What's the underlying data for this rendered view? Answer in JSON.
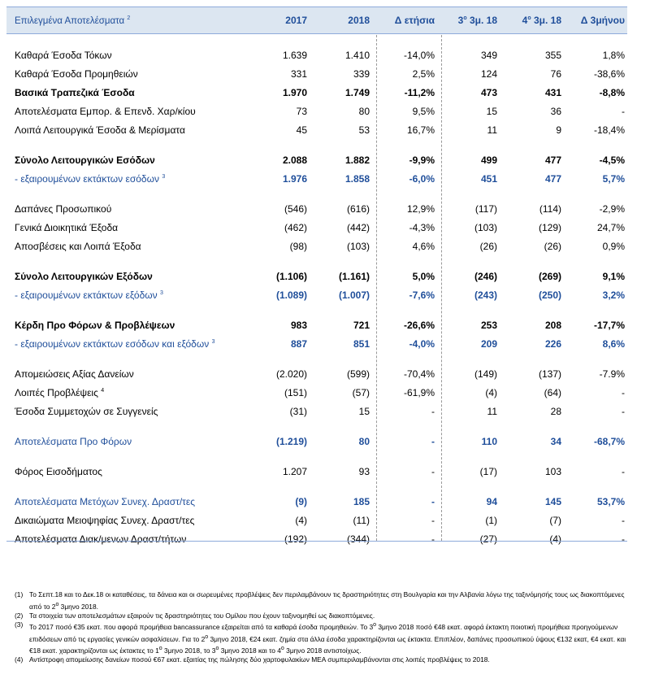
{
  "header": {
    "title": "Επιλεγμένα Αποτελέσματα",
    "title_sup": "2",
    "columns": [
      "2017",
      "2018",
      "Δ ετήσια",
      {
        "pre": "3",
        "sup": "ο",
        "post": " 3μ. 18"
      },
      {
        "pre": "4",
        "sup": "ο",
        "post": " 3μ. 18"
      },
      "Δ 3μήνου"
    ]
  },
  "sections": [
    {
      "rows": [
        {
          "label": "Καθαρά Έσοδα Τόκων",
          "style": "plain",
          "values": [
            "1.639",
            "1.410",
            "-14,0%",
            "349",
            "355",
            "1,8%"
          ]
        },
        {
          "label": "Καθαρά Έσοδα Προμηθειών",
          "style": "plain",
          "values": [
            "331",
            "339",
            "2,5%",
            "124",
            "76",
            "-38,6%"
          ]
        },
        {
          "label": "Βασικά Τραπεζικά Έσοδα",
          "style": "bold",
          "values": [
            "1.970",
            "1.749",
            "-11,2%",
            "473",
            "431",
            "-8,8%"
          ]
        },
        {
          "label": "Αποτελέσματα Εμπορ. & Επενδ. Χαρ/κίου",
          "style": "plain",
          "values": [
            "73",
            "80",
            "9,5%",
            "15",
            "36",
            "-"
          ]
        },
        {
          "label": "Λοιπά Λειτουργικά Έσοδα & Μερίσματα",
          "style": "plain",
          "values": [
            "45",
            "53",
            "16,7%",
            "11",
            "9",
            "-18,4%"
          ]
        }
      ]
    },
    {
      "rows": [
        {
          "label": "Σύνολο Λειτουργικών Εσόδων",
          "style": "bold",
          "values": [
            "2.088",
            "1.882",
            "-9,9%",
            "499",
            "477",
            "-4,5%"
          ]
        },
        {
          "label": " - εξαιρουμένων εκτάκτων εσόδων",
          "sup": "3",
          "style": "blue",
          "values": [
            "1.976",
            "1.858",
            "-6,0%",
            "451",
            "477",
            "5,7%"
          ]
        }
      ]
    },
    {
      "rows": [
        {
          "label": "Δαπάνες Προσωπικού",
          "style": "plain",
          "values": [
            "(546)",
            "(616)",
            "12,9%",
            "(117)",
            "(114)",
            "-2,9%"
          ]
        },
        {
          "label": "Γενικά Διοικητικά Έξοδα",
          "style": "plain",
          "values": [
            "(462)",
            "(442)",
            "-4,3%",
            "(103)",
            "(129)",
            "24,7%"
          ]
        },
        {
          "label": "Αποσβέσεις και Λοιπά Έξοδα",
          "style": "plain",
          "values": [
            "(98)",
            "(103)",
            "4,6%",
            "(26)",
            "(26)",
            "0,9%"
          ]
        }
      ]
    },
    {
      "rows": [
        {
          "label": "Σύνολο Λειτουργικών Εξόδων",
          "style": "bold",
          "values": [
            "(1.106)",
            "(1.161)",
            "5,0%",
            "(246)",
            "(269)",
            "9,1%"
          ]
        },
        {
          "label": "- εξαιρουμένων εκτάκτων εξόδων",
          "sup": "3",
          "style": "blue",
          "values": [
            "(1.089)",
            "(1.007)",
            "-7,6%",
            "(243)",
            "(250)",
            "3,2%"
          ]
        }
      ]
    },
    {
      "rows": [
        {
          "label": "Κέρδη Προ Φόρων & Προβλέψεων",
          "style": "bold",
          "values": [
            "983",
            "721",
            "-26,6%",
            "253",
            "208",
            "-17,7%"
          ]
        },
        {
          "label": "- εξαιρουμένων εκτάκτων εσόδων και εξόδων",
          "sup": "3",
          "style": "blue",
          "values": [
            "887",
            "851",
            "-4,0%",
            "209",
            "226",
            "8,6%"
          ]
        }
      ]
    },
    {
      "rows": [
        {
          "label": "Απομειώσεις Αξίας Δανείων",
          "style": "plain",
          "values": [
            "(2.020)",
            "(599)",
            "-70,4%",
            "(149)",
            "(137)",
            "-7.9%"
          ]
        },
        {
          "label": "Λοιπές Προβλέψεις",
          "sup": "4",
          "style": "plain",
          "values": [
            "(151)",
            "(57)",
            "-61,9%",
            "(4)",
            "(64)",
            "-"
          ]
        },
        {
          "label": "Έσοδα Συμμετοχών σε Συγγενείς",
          "style": "plain",
          "values": [
            "(31)",
            "15",
            "-",
            "11",
            "28",
            "-"
          ]
        }
      ]
    },
    {
      "rows": [
        {
          "label": "Αποτελέσματα Προ Φόρων",
          "style": "blue",
          "values": [
            "(1.219)",
            "80",
            "-",
            "110",
            "34",
            "-68,7%"
          ]
        }
      ]
    },
    {
      "rows": [
        {
          "label": "Φόρος Εισοδήματος",
          "style": "plain",
          "values": [
            "1.207",
            "93",
            "-",
            "(17)",
            "103",
            "-"
          ]
        }
      ]
    },
    {
      "rows": [
        {
          "label": "Αποτελέσματα Μετόχων Συνεχ. Δραστ/τες",
          "style": "blue",
          "values": [
            "(9)",
            "185",
            "-",
            "94",
            "145",
            "53,7%"
          ]
        },
        {
          "label": "Δικαιώματα Μειοψηφίας Συνεχ. Δραστ/τες",
          "style": "plain",
          "values": [
            "(4)",
            "(11)",
            "-",
            "(1)",
            "(7)",
            "-"
          ]
        },
        {
          "label": "Αποτελέσματα Διακ/μενων Δραστ/τήτων",
          "style": "plain",
          "values": [
            "(192)",
            "(344)",
            "-",
            "(27)",
            "(4)",
            "-"
          ]
        }
      ]
    }
  ],
  "footnotes": [
    {
      "num": "(1)",
      "parts": [
        {
          "t": "Το Σεπτ.18 και το Δεκ.18 οι καταθέσεις, τα δάνεια και οι σωρευμένες προβλέψεις δεν περιλαμβάνουν τις δραστηριότητες στη Βουλγαρία και την Αλβανία λόγω της ταξινόμησής τους ως διακοπτόμενες από το 2"
        },
        {
          "sup": "ο"
        },
        {
          "t": " 3μηνο 2018."
        }
      ]
    },
    {
      "num": "(2)",
      "parts": [
        {
          "t": "Τα στοιχεία των αποτελεσμάτων εξαιρούν τις δραστηριότητες του Ομίλου που έχουν ταξινομηθεί ως διακοπτόμενες."
        }
      ]
    },
    {
      "num": "(3)",
      "parts": [
        {
          "t": "Το 2017 ποσό €35 εκατ. που αφορά προμήθεια bancassurance εξαιρείται από τα καθαρά έσοδα προμηθειών. Το 3"
        },
        {
          "sup": "ο"
        },
        {
          "t": " 3μηνο 2018 ποσό €48 εκατ. αφορά έκτακτη ποιοτική προμήθεια προηγούμενων επιδόσεων από τις εργασίες γενικών ασφαλίσεων. Για το 2"
        },
        {
          "sup": "ο"
        },
        {
          "t": " 3μηνο 2018, €24 εκατ. ζημία στα άλλα έσοδα χαρακτηρίζονται ως έκτακτα. Επιπλέον, δαπάνες προσωπικού ύψους €132 εκατ, €4 εκατ. και €18 εκατ. χαρακτηρίζονται ως έκτακτες το 1"
        },
        {
          "sup": "ο"
        },
        {
          "t": " 3μηνο 2018, το 3"
        },
        {
          "sup": "ο"
        },
        {
          "t": " 3μηνο 2018 και το 4"
        },
        {
          "sup": "ο"
        },
        {
          "t": " 3μηνο 2018 αντιστοίχως."
        }
      ]
    },
    {
      "num": "(4)",
      "parts": [
        {
          "t": "Αντίστροφη απομείωσης δανείων ποσού €67 εκατ. εξαιτίας της πώλησης δύο χαρτοφυλακίων ΜΕΑ συμπεριλαμβάνονται στις λοιπές προβλέψεις το 2018."
        }
      ]
    }
  ]
}
